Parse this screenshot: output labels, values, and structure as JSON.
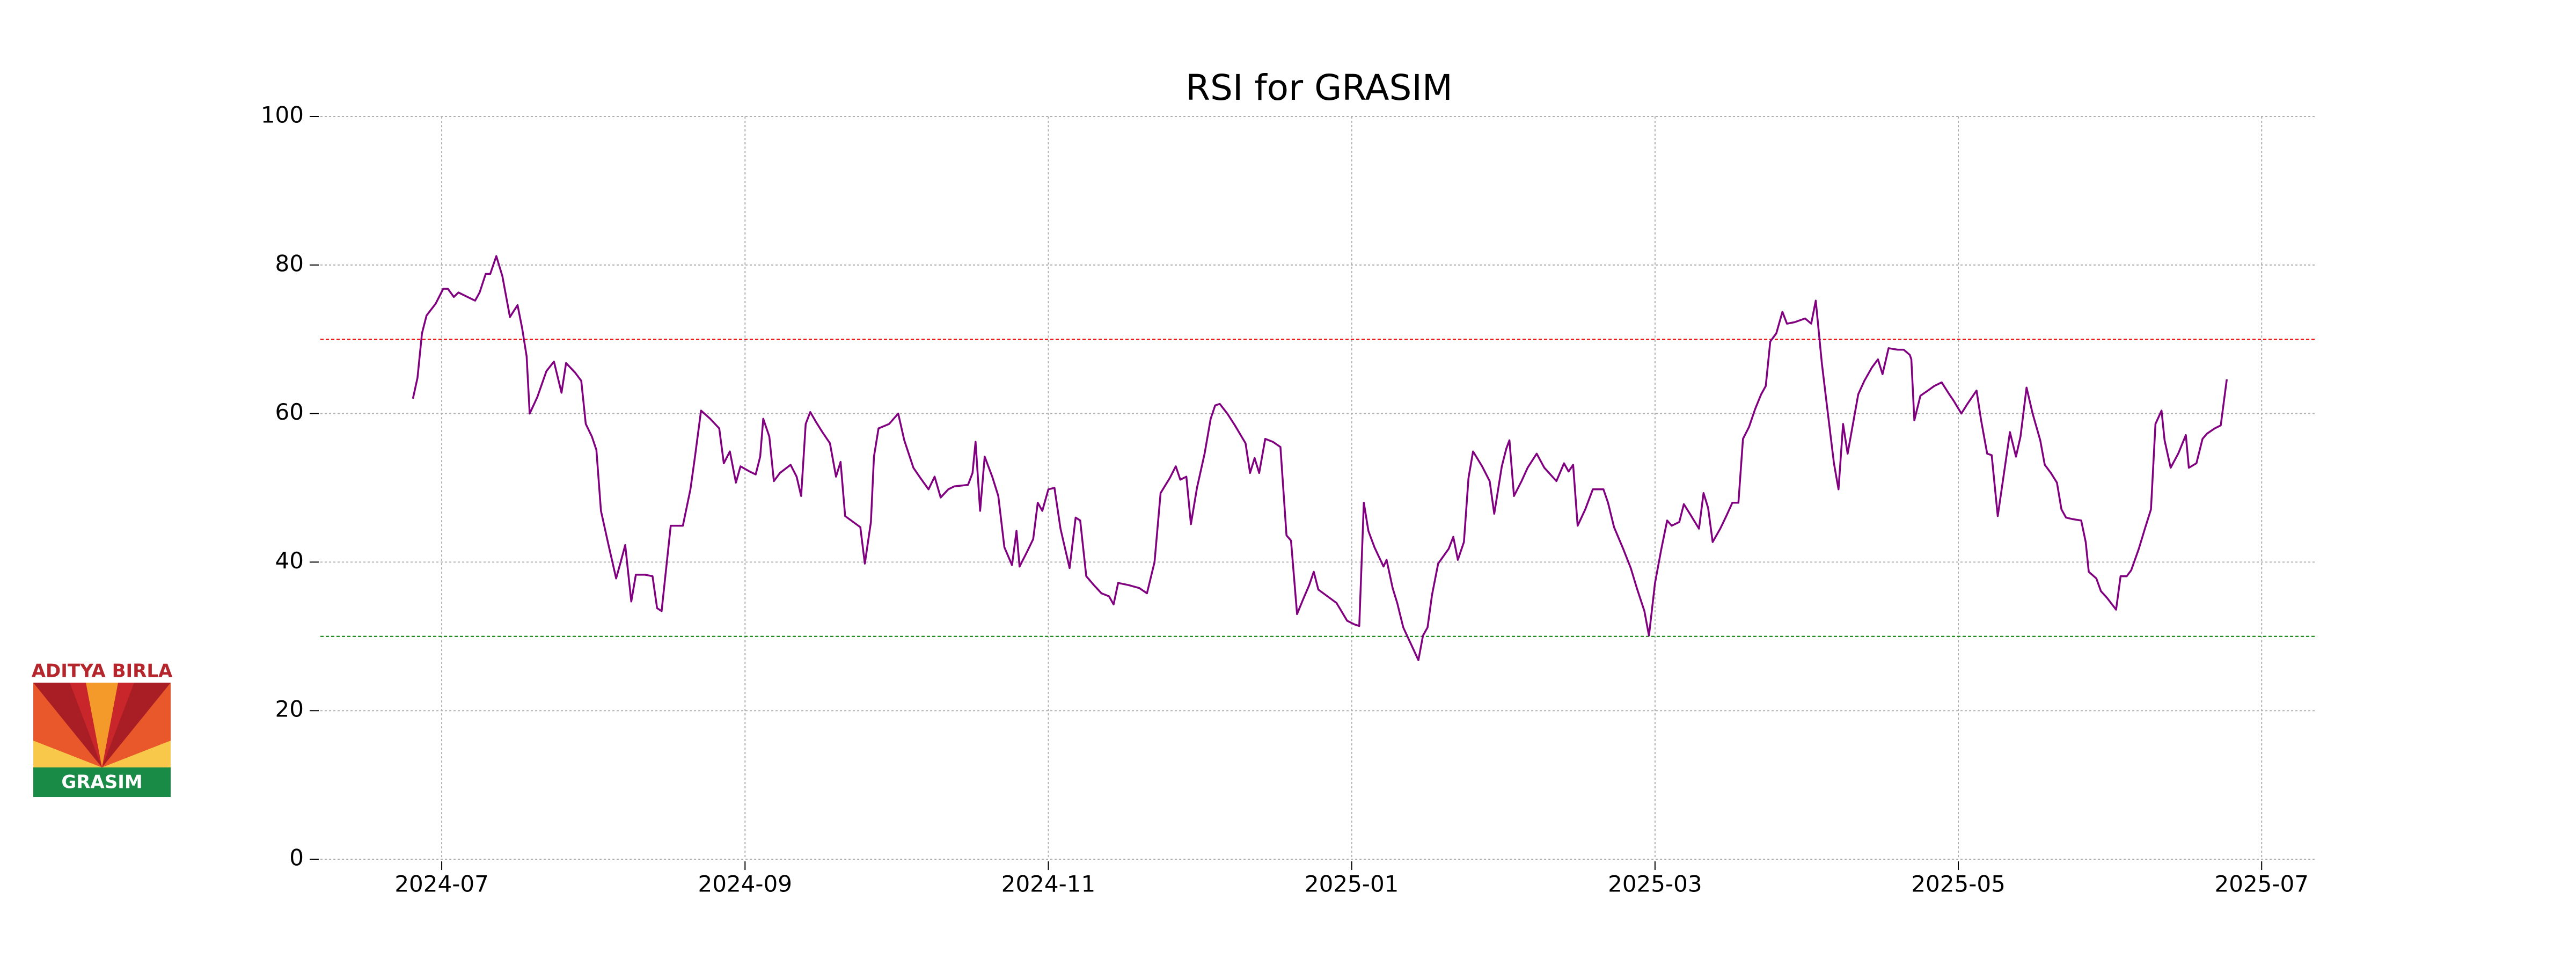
{
  "chart_data": {
    "type": "line",
    "title": "RSI for GRASIM",
    "x": [
      -0.19,
      -0.16,
      -0.13,
      -0.1,
      -0.04,
      0.01,
      0.04,
      0.08,
      0.11,
      0.17,
      0.22,
      0.25,
      0.29,
      0.32,
      0.36,
      0.4,
      0.45,
      0.5,
      0.53,
      0.56,
      0.58,
      0.63,
      0.69,
      0.74,
      0.79,
      0.82,
      0.88,
      0.92,
      0.95,
      0.99,
      1.02,
      1.05,
      1.1,
      1.15,
      1.18,
      1.21,
      1.25,
      1.28,
      1.34,
      1.39,
      1.42,
      1.45,
      1.51,
      1.54,
      1.59,
      1.64,
      1.67,
      1.71,
      1.77,
      1.83,
      1.86,
      1.9,
      1.94,
      1.97,
      2.03,
      2.07,
      2.1,
      2.12,
      2.16,
      2.19,
      2.23,
      2.3,
      2.34,
      2.37,
      2.4,
      2.43,
      2.47,
      2.51,
      2.56,
      2.6,
      2.63,
      2.66,
      2.7,
      2.76,
      2.79,
      2.83,
      2.85,
      2.88,
      2.95,
      3.01,
      3.05,
      3.11,
      3.15,
      3.21,
      3.25,
      3.29,
      3.34,
      3.38,
      3.47,
      3.5,
      3.52,
      3.55,
      3.58,
      3.63,
      3.67,
      3.71,
      3.76,
      3.79,
      3.81,
      3.86,
      3.9,
      3.93,
      3.96,
      4.0,
      4.04,
      4.08,
      4.14,
      4.18,
      4.21,
      4.25,
      4.3,
      4.35,
      4.4,
      4.43,
      4.46,
      4.53,
      4.6,
      4.65,
      4.7,
      4.74,
      4.8,
      4.84,
      4.87,
      4.91,
      4.94,
      4.98,
      5.03,
      5.07,
      5.1,
      5.13,
      5.18,
      5.23,
      5.3,
      5.33,
      5.36,
      5.39,
      5.43,
      5.48,
      5.53,
      5.57,
      5.6,
      5.64,
      5.68,
      5.72,
      5.75,
      5.78,
      5.84,
      5.9,
      5.97,
      6.02,
      6.05,
      6.08,
      6.11,
      6.15,
      6.21,
      6.23,
      6.27,
      6.3,
      6.34,
      6.39,
      6.44,
      6.47,
      6.5,
      6.53,
      6.57,
      6.64,
      6.67,
      6.7,
      6.74,
      6.77,
      6.8,
      6.86,
      6.91,
      6.94,
      6.99,
      7.02,
      7.04,
      7.07,
      7.12,
      7.16,
      7.22,
      7.27,
      7.35,
      7.4,
      7.43,
      7.46,
      7.49,
      7.54,
      7.59,
      7.66,
      7.69,
      7.73,
      7.79,
      7.84,
      7.88,
      7.93,
      7.96,
      8.0,
      8.04,
      8.08,
      8.11,
      8.16,
      8.19,
      8.23,
      8.29,
      8.32,
      8.35,
      8.38,
      8.43,
      8.47,
      8.51,
      8.55,
      8.58,
      8.62,
      8.66,
      8.7,
      8.73,
      8.76,
      8.8,
      8.84,
      8.87,
      8.92,
      8.99,
      9.03,
      9.06,
      9.1,
      9.14,
      9.18,
      9.21,
      9.24,
      9.27,
      9.34,
      9.38,
      9.43,
      9.47,
      9.5,
      9.54,
      9.6,
      9.64,
      9.68,
      9.69,
      9.71,
      9.75,
      9.8,
      9.84,
      9.89,
      9.94,
      9.97,
      10.02,
      10.06,
      10.12,
      10.15,
      10.19,
      10.22,
      10.26,
      10.3,
      10.34,
      10.38,
      10.41,
      10.45,
      10.49,
      10.54,
      10.57,
      10.61,
      10.65,
      10.68,
      10.71,
      10.75,
      10.81,
      10.84,
      10.86,
      10.91,
      10.94,
      10.98,
      11.04,
      11.07,
      11.11,
      11.14,
      11.19,
      11.23,
      11.27,
      11.3,
      11.34,
      11.36,
      11.4,
      11.45,
      11.5,
      11.52,
      11.57,
      11.61,
      11.64,
      11.69,
      11.73,
      11.77
    ],
    "values": [
      62.0,
      64.8,
      70.8,
      73.2,
      74.8,
      76.8,
      76.8,
      75.7,
      76.3,
      75.7,
      75.2,
      76.3,
      78.8,
      78.8,
      81.2,
      78.5,
      73.0,
      74.6,
      71.5,
      67.7,
      60.0,
      62.2,
      65.7,
      67.0,
      62.8,
      66.8,
      65.5,
      64.4,
      58.6,
      56.9,
      55.1,
      46.9,
      42.3,
      37.8,
      40.0,
      42.3,
      34.7,
      38.3,
      38.3,
      38.1,
      33.8,
      33.4,
      44.9,
      44.9,
      44.9,
      49.8,
      54.2,
      60.4,
      59.3,
      58.0,
      53.3,
      54.9,
      50.7,
      52.9,
      52.2,
      51.8,
      54.2,
      59.3,
      56.9,
      50.9,
      52.0,
      53.1,
      51.5,
      48.9,
      58.6,
      60.2,
      58.8,
      57.5,
      56.0,
      51.5,
      53.5,
      46.2,
      45.6,
      44.7,
      39.8,
      45.4,
      54.2,
      58.0,
      58.6,
      60.0,
      56.4,
      52.7,
      51.5,
      49.8,
      51.5,
      48.7,
      49.8,
      50.2,
      50.4,
      52.0,
      56.2,
      46.9,
      54.2,
      51.5,
      48.9,
      42.0,
      39.6,
      44.2,
      39.4,
      41.4,
      43.1,
      48.0,
      46.9,
      49.8,
      50.0,
      44.5,
      39.2,
      46.0,
      45.6,
      38.1,
      36.9,
      35.8,
      35.4,
      34.3,
      37.2,
      36.9,
      36.5,
      35.8,
      40.0,
      49.3,
      51.3,
      52.9,
      51.1,
      51.5,
      45.1,
      50.0,
      54.6,
      59.3,
      61.1,
      61.3,
      60.0,
      58.4,
      56.0,
      52.0,
      54.0,
      52.0,
      56.6,
      56.2,
      55.5,
      43.6,
      42.9,
      33.0,
      35.0,
      36.9,
      38.7,
      36.3,
      35.4,
      34.5,
      32.1,
      31.6,
      31.4,
      48.0,
      44.2,
      42.0,
      39.4,
      40.3,
      36.5,
      34.5,
      31.2,
      29.0,
      26.8,
      30.1,
      31.2,
      35.6,
      39.8,
      41.8,
      43.4,
      40.3,
      42.7,
      51.3,
      54.9,
      52.9,
      50.9,
      46.5,
      52.9,
      55.3,
      56.4,
      48.9,
      50.9,
      52.7,
      54.6,
      52.7,
      50.9,
      53.3,
      52.2,
      53.1,
      44.9,
      47.1,
      49.8,
      49.8,
      48.0,
      44.7,
      41.8,
      39.2,
      36.5,
      33.4,
      30.1,
      37.2,
      41.6,
      45.6,
      44.9,
      45.4,
      47.8,
      46.5,
      44.5,
      49.3,
      47.3,
      42.7,
      44.5,
      46.2,
      48.0,
      48.0,
      56.6,
      58.2,
      60.6,
      62.6,
      63.7,
      69.7,
      70.8,
      73.7,
      72.1,
      72.3,
      72.8,
      72.1,
      75.2,
      66.8,
      60.0,
      53.3,
      49.8,
      58.6,
      54.6,
      62.6,
      64.4,
      66.2,
      67.3,
      65.3,
      68.8,
      68.6,
      68.6,
      67.9,
      67.3,
      59.1,
      62.4,
      63.1,
      63.7,
      64.2,
      62.6,
      61.7,
      60.0,
      61.3,
      63.1,
      59.1,
      54.6,
      54.4,
      46.2,
      51.8,
      57.5,
      54.2,
      56.9,
      63.5,
      60.0,
      56.4,
      53.1,
      52.0,
      50.7,
      47.1,
      46.0,
      45.8,
      45.6,
      42.7,
      38.7,
      37.8,
      36.1,
      35.2,
      33.6,
      38.1,
      38.1,
      38.9,
      41.8,
      44.5,
      47.1,
      58.6,
      60.4,
      56.4,
      52.7,
      54.6,
      57.1,
      52.7,
      53.3,
      56.6,
      57.3,
      58.0,
      58.4,
      64.6
    ],
    "color": "purple",
    "xlim": [
      -0.8,
      12.36
    ],
    "xticks": [
      {
        "value": 0,
        "label": "2024-07"
      },
      {
        "value": 2,
        "label": "2024-09"
      },
      {
        "value": 4,
        "label": "2024-11"
      },
      {
        "value": 6,
        "label": "2025-01"
      },
      {
        "value": 8,
        "label": "2025-03"
      },
      {
        "value": 10,
        "label": "2025-05"
      },
      {
        "value": 12,
        "label": "2025-07"
      }
    ],
    "ylim": [
      0,
      100
    ],
    "yticks": [
      0,
      20,
      40,
      60,
      80,
      100
    ],
    "grid": true,
    "hlines": [
      {
        "value": 70,
        "color": "red"
      },
      {
        "value": 30,
        "color": "green"
      }
    ]
  },
  "logo": {
    "top_text": "ADITYA BIRLA",
    "bottom_text": "GRASIM"
  }
}
